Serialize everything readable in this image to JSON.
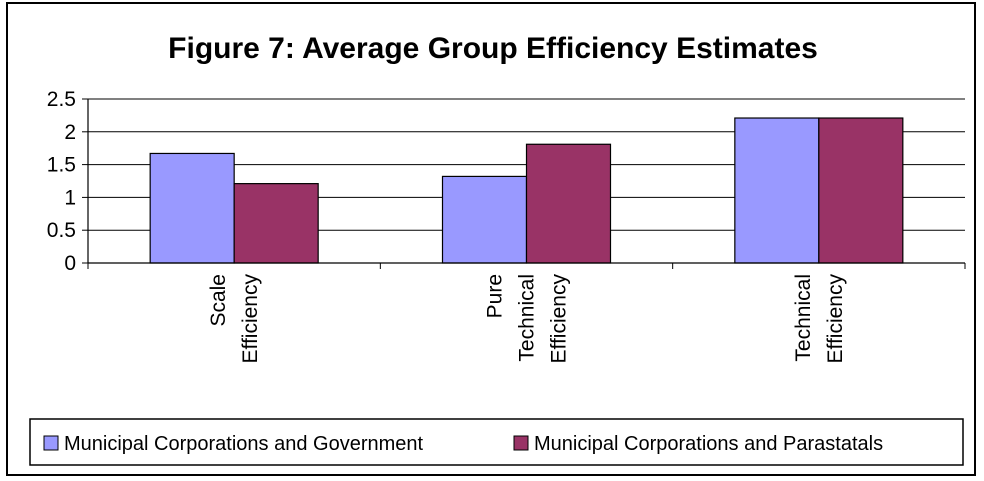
{
  "chart_data": {
    "type": "bar",
    "title": "Figure 7: Average Group Efficiency Estimates",
    "categories": [
      [
        "Scale",
        "Efficiency"
      ],
      [
        "Pure",
        "Technical",
        "Efficiency"
      ],
      [
        "Technical",
        "Efficiency"
      ]
    ],
    "series": [
      {
        "name": "Municipal Corporations and Government",
        "values": [
          1.67,
          1.32,
          2.21
        ],
        "color": "#9999ff"
      },
      {
        "name": "Municipal Corporations and Parastatals",
        "values": [
          1.21,
          1.81,
          2.21
        ],
        "color": "#993366"
      }
    ],
    "ylim": [
      0,
      2.5
    ],
    "yticks": [
      "0",
      "0.5",
      "1",
      "1.5",
      "2",
      "2.5"
    ],
    "grid": true,
    "legend_position": "bottom"
  }
}
